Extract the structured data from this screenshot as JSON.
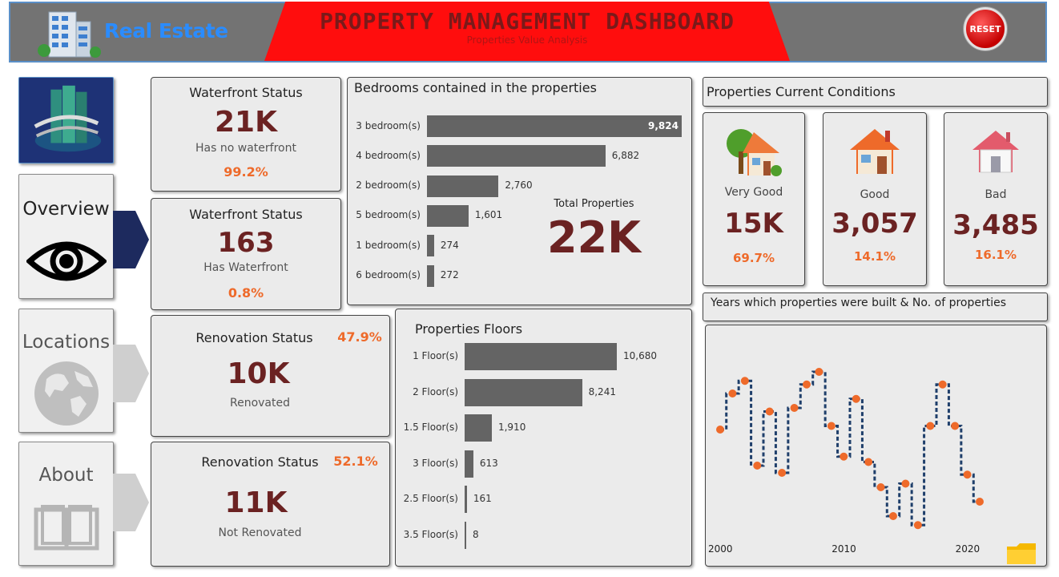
{
  "header": {
    "brand": "Real Estate",
    "title": "PROPERTY MANAGEMENT DASHBOARD",
    "subtitle": "Properties Value Analysis",
    "reset_label": "RESET"
  },
  "nav": {
    "overview": "Overview",
    "locations": "Locations",
    "about": "About"
  },
  "waterfront": [
    {
      "title": "Waterfront Status",
      "value": "21K",
      "label": "Has no waterfront",
      "pct": "99.2%"
    },
    {
      "title": "Waterfront Status",
      "value": "163",
      "label": "Has Waterfront",
      "pct": "0.8%"
    }
  ],
  "renovation": [
    {
      "title": "Renovation Status",
      "pct": "47.9%",
      "value": "10K",
      "label": "Renovated"
    },
    {
      "title": "Renovation Status",
      "pct": "52.1%",
      "value": "11K",
      "label": "Not Renovated"
    }
  ],
  "bedrooms_panel": {
    "title": "Bedrooms contained in the properties",
    "total_label": "Total Properties",
    "total_value": "22K"
  },
  "floors_panel": {
    "title": "Properties Floors"
  },
  "conditions": {
    "title": "Properties Current Conditions",
    "items": [
      {
        "label": "Very Good",
        "value": "15K",
        "pct": "69.7%"
      },
      {
        "label": "Good",
        "value": "3,057",
        "pct": "14.1%"
      },
      {
        "label": "Bad",
        "value": "3,485",
        "pct": "16.1%"
      }
    ]
  },
  "years_panel": {
    "title": "Years which properties were built & No. of properties"
  },
  "colors": {
    "accent": "#ee6a2a",
    "value": "#6b2222",
    "bar": "#646464",
    "header": "#737373",
    "banner": "#ff0d0d",
    "line": "#1f3f6b"
  },
  "chart_data": [
    {
      "type": "bar",
      "orientation": "horizontal",
      "categories": [
        "3 bedroom(s)",
        "4 bedroom(s)",
        "2 bedroom(s)",
        "5 bedroom(s)",
        "1 bedroom(s)",
        "6 bedroom(s)"
      ],
      "values": [
        9824,
        6882,
        2760,
        1601,
        274,
        272
      ],
      "value_labels": [
        "9,824",
        "6,882",
        "2,760",
        "1,601",
        "274",
        "272"
      ],
      "title": "Bedrooms contained in the properties"
    },
    {
      "type": "bar",
      "orientation": "horizontal",
      "categories": [
        "1 Floor(s)",
        "2 Floor(s)",
        "1.5 Floor(s)",
        "3 Floor(s)",
        "2.5 Floor(s)",
        "3.5 Floor(s)"
      ],
      "values": [
        10680,
        8241,
        1910,
        613,
        161,
        8
      ],
      "value_labels": [
        "10,680",
        "8,241",
        "1,910",
        "613",
        "161",
        "8"
      ],
      "title": "Properties Floors"
    },
    {
      "type": "line",
      "title": "Years which properties were built & No. of properties",
      "x": [
        2000,
        2001,
        2002,
        2003,
        2004,
        2005,
        2006,
        2007,
        2008,
        2009,
        2010,
        2011,
        2012,
        2013,
        2014,
        2015,
        2016,
        2017,
        2018,
        2019,
        2020,
        2021
      ],
      "y": [
        60,
        80,
        87,
        40,
        70,
        36,
        72,
        85,
        92,
        62,
        45,
        77,
        42,
        28,
        12,
        30,
        7,
        62,
        85,
        62,
        35,
        20
      ],
      "xticks": [
        "2000",
        "2010",
        "2020"
      ],
      "style": "step"
    }
  ]
}
